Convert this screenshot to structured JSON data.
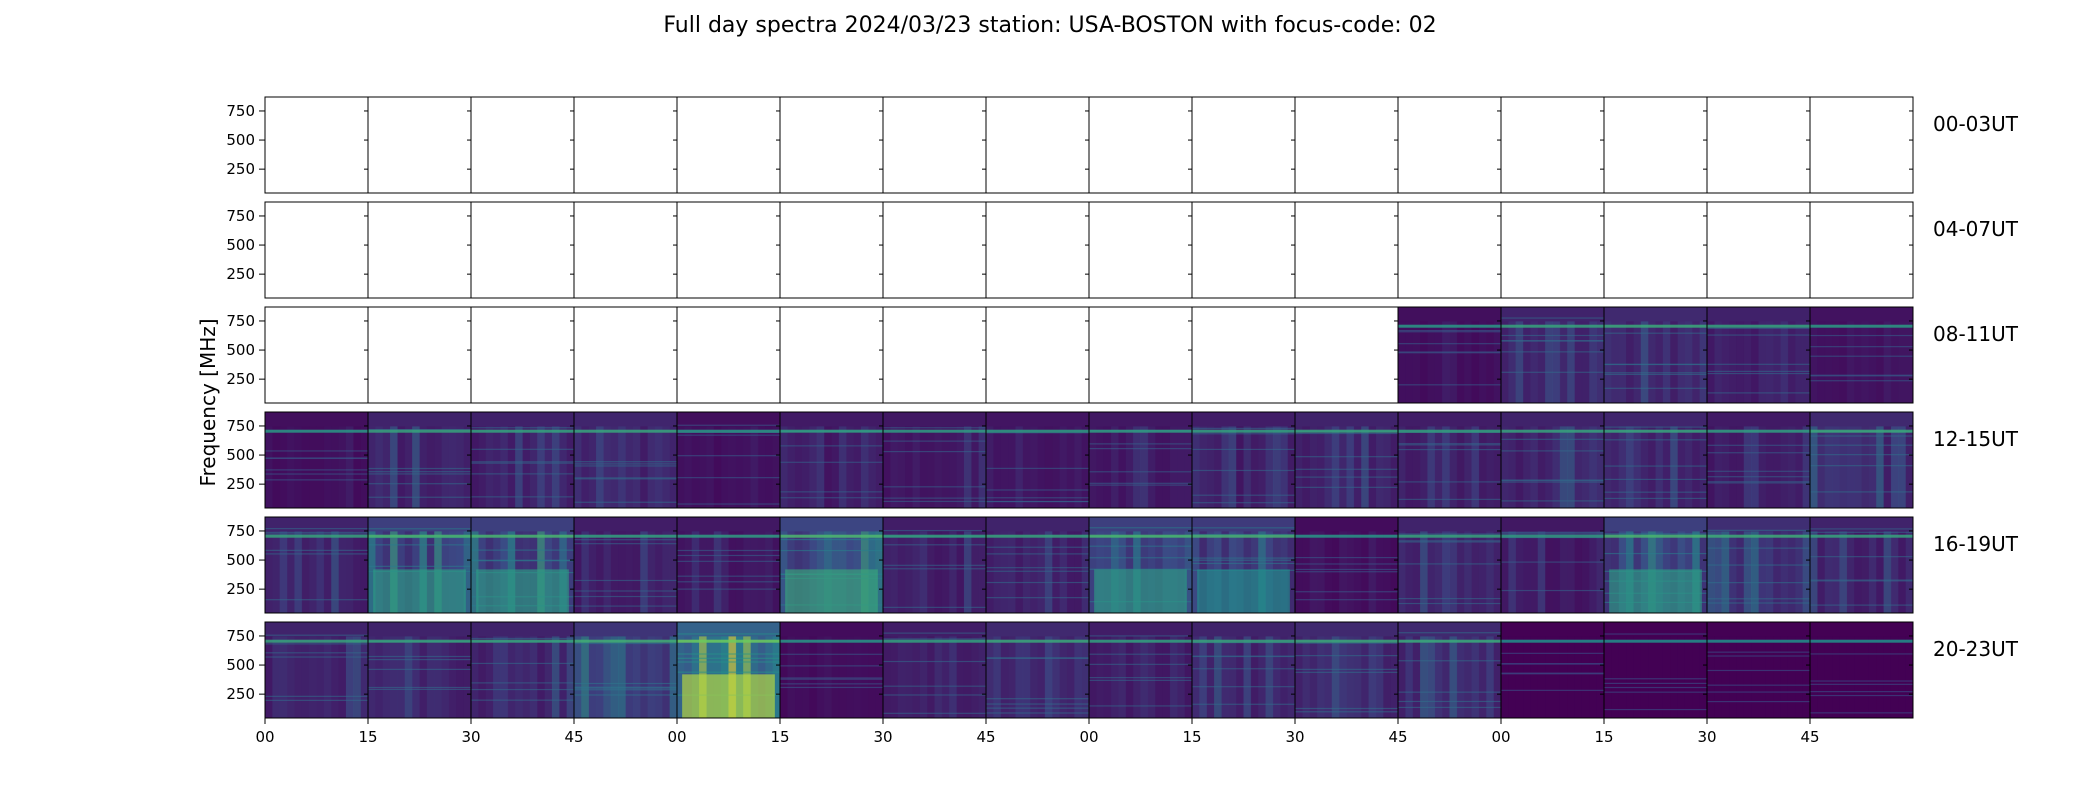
{
  "title": "Full day spectra 2024/03/23 station: USA-BOSTON with focus-code: 02",
  "chart_data": {
    "type": "heatmap",
    "title": "Full day spectra 2024/03/23 station: USA-BOSTON with focus-code: 02",
    "ylabel": "Frequency [MHz]",
    "xlabel": "",
    "ylim": [
      45,
      870
    ],
    "yticks": [
      250,
      500,
      750
    ],
    "xticks": [
      "00",
      "15",
      "30",
      "45",
      "00",
      "15",
      "30",
      "45",
      "00",
      "15",
      "30",
      "45",
      "00",
      "15",
      "30",
      "45"
    ],
    "colormap": "viridis",
    "colors": {
      "low": "#440154",
      "mid": "#31688e",
      "teal": "#35b779",
      "high": "#fde725",
      "band": "#1fa187",
      "empty": "#ffffff"
    },
    "panels_per_row": 16,
    "minutes_per_panel": 15,
    "rows": [
      {
        "label": "00-03UT",
        "has_data": [
          0,
          0,
          0,
          0,
          0,
          0,
          0,
          0,
          0,
          0,
          0,
          0,
          0,
          0,
          0,
          0
        ],
        "intensity": [
          0,
          0,
          0,
          0,
          0,
          0,
          0,
          0,
          0,
          0,
          0,
          0,
          0,
          0,
          0,
          0
        ]
      },
      {
        "label": "04-07UT",
        "has_data": [
          0,
          0,
          0,
          0,
          0,
          0,
          0,
          0,
          0,
          0,
          0,
          0,
          0,
          0,
          0,
          0
        ],
        "intensity": [
          0,
          0,
          0,
          0,
          0,
          0,
          0,
          0,
          0,
          0,
          0,
          0,
          0,
          0,
          0,
          0
        ]
      },
      {
        "label": "08-11UT",
        "has_data": [
          0,
          0,
          0,
          0,
          0,
          0,
          0,
          0,
          0,
          0,
          0,
          1,
          1,
          1,
          1,
          1
        ],
        "intensity": [
          0,
          0,
          0,
          0,
          0,
          0,
          0,
          0,
          0,
          0,
          0,
          0.12,
          0.3,
          0.35,
          0.28,
          0.15
        ]
      },
      {
        "label": "12-15UT",
        "has_data": [
          1,
          1,
          1,
          1,
          1,
          1,
          1,
          1,
          1,
          1,
          1,
          1,
          1,
          1,
          1,
          1
        ],
        "intensity": [
          0.12,
          0.3,
          0.28,
          0.32,
          0.12,
          0.22,
          0.2,
          0.18,
          0.2,
          0.25,
          0.3,
          0.25,
          0.3,
          0.32,
          0.22,
          0.35
        ]
      },
      {
        "label": "16-19UT",
        "has_data": [
          1,
          1,
          1,
          1,
          1,
          1,
          1,
          1,
          1,
          1,
          1,
          1,
          1,
          1,
          1,
          1
        ],
        "intensity": [
          0.3,
          0.55,
          0.55,
          0.25,
          0.2,
          0.6,
          0.25,
          0.3,
          0.55,
          0.5,
          0.1,
          0.3,
          0.2,
          0.55,
          0.4,
          0.3
        ]
      },
      {
        "label": "20-23UT",
        "has_data": [
          1,
          1,
          1,
          1,
          1,
          1,
          1,
          1,
          1,
          1,
          1,
          1,
          1,
          1,
          1,
          1
        ],
        "intensity": [
          0.3,
          0.3,
          0.3,
          0.45,
          0.9,
          0.1,
          0.25,
          0.35,
          0.25,
          0.3,
          0.35,
          0.35,
          0,
          0,
          0,
          0
        ]
      }
    ]
  }
}
